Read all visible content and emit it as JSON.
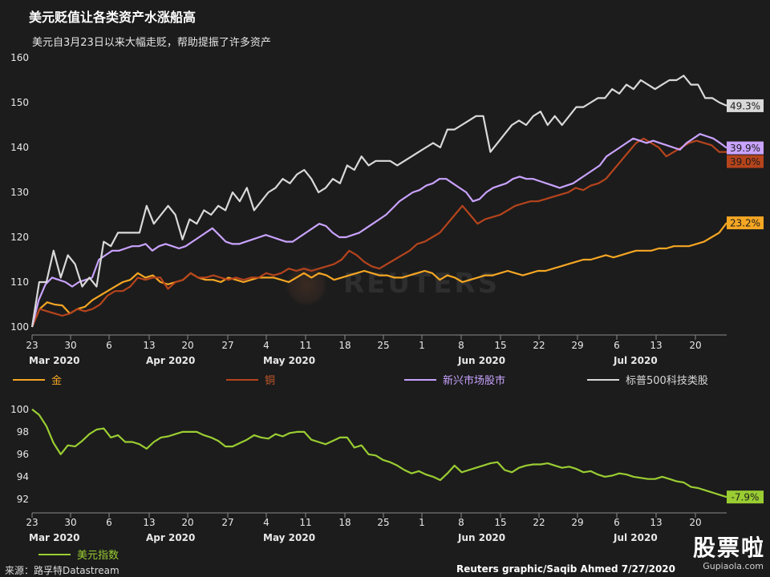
{
  "header": {
    "title": "美元贬值让各类资产水涨船高",
    "subtitle": "美元自3月23日以来大幅走贬，帮助提振了许多资产"
  },
  "watermark": "REUTERS",
  "footer": {
    "source": "来源：路孚特Datastream",
    "credit": "Reuters graphic/Saqib Ahmed 7/27/2020"
  },
  "site_badge": {
    "text": "股票啦",
    "url": "Gupiaola.com"
  },
  "chart_data": [
    {
      "type": "line",
      "title": "",
      "xlabel": "",
      "ylabel": "",
      "ylim": [
        100,
        160
      ],
      "yticks": [
        100,
        110,
        120,
        130,
        140,
        150,
        160
      ],
      "grid": false,
      "legend_position": "bottom",
      "x_tick_labels": [
        "23",
        "30",
        "6",
        "13",
        "20",
        "27",
        "4",
        "11",
        "18",
        "25",
        "1",
        "8",
        "15",
        "22",
        "29",
        "6",
        "13",
        "20"
      ],
      "x_month_labels": [
        {
          "label": "Mar 2020",
          "index": 0
        },
        {
          "label": "Apr 2020",
          "index": 3
        },
        {
          "label": "May 2020",
          "index": 6
        },
        {
          "label": "Jun 2020",
          "index": 11
        },
        {
          "label": "Jul 2020",
          "index": 15
        }
      ],
      "series": [
        {
          "name": "金",
          "color": "#f5a623",
          "end_label": "23.2%",
          "values": [
            100,
            104,
            105.5,
            105,
            104.8,
            103,
            104,
            104.5,
            106,
            107,
            108,
            109,
            110,
            110.5,
            112,
            111,
            111.5,
            110,
            109.5,
            110,
            110.5,
            112,
            111,
            110.5,
            110.5,
            110,
            111,
            110.5,
            110,
            110.5,
            111,
            111,
            111,
            110.5,
            110,
            111,
            112,
            111,
            112,
            111.5,
            110.5,
            111,
            111.5,
            112,
            112.5,
            112,
            111.5,
            111.5,
            111,
            111,
            111.5,
            112,
            112.5,
            112,
            110.5,
            111.5,
            111,
            110,
            110.5,
            111,
            111.5,
            111.5,
            112,
            112.5,
            112,
            111.5,
            112,
            112.5,
            112.5,
            113,
            113.5,
            114,
            114.5,
            115,
            115,
            115.5,
            116,
            115.5,
            116,
            116.5,
            117,
            117,
            117,
            117.5,
            117.5,
            118,
            118,
            118,
            118.5,
            119,
            120,
            121,
            123.2
          ]
        },
        {
          "name": "铜",
          "color": "#b5441c",
          "end_label": "39.0%",
          "values": [
            100,
            104,
            103.5,
            103,
            102.5,
            103,
            104,
            103.5,
            104,
            105,
            107,
            108,
            108,
            109,
            111,
            110.5,
            111,
            111,
            108.5,
            110,
            110.5,
            112,
            111,
            111,
            111.5,
            111,
            110.5,
            111,
            110.5,
            111,
            111,
            112,
            111.5,
            112,
            113,
            112.5,
            113,
            112.5,
            113,
            113.5,
            114,
            115,
            117,
            116,
            114.5,
            113.5,
            113,
            114,
            115,
            116,
            117,
            118.5,
            119,
            120,
            121,
            123,
            125,
            127,
            125,
            123,
            124,
            124.5,
            125,
            126,
            127,
            127.5,
            128,
            128,
            128.5,
            129,
            129.5,
            130,
            131,
            130.5,
            131.5,
            132,
            133,
            135,
            137,
            139,
            141,
            142,
            141,
            140,
            138,
            139,
            140,
            141,
            141.5,
            141,
            140.5,
            139,
            139
          ]
        },
        {
          "name": "新兴市场股市",
          "color": "#c9a3ff",
          "end_label": "39.9%",
          "values": [
            100,
            106,
            109.5,
            111,
            110.5,
            110,
            109,
            110,
            110.5,
            111,
            115,
            116,
            117,
            117,
            117.5,
            118,
            118,
            118.5,
            117,
            118,
            118.5,
            118,
            117.5,
            118,
            119,
            120,
            121,
            122,
            120.5,
            119,
            118.5,
            118.5,
            119,
            119.5,
            120,
            120.5,
            120,
            119.5,
            119,
            119,
            120,
            121,
            122,
            123,
            122.5,
            121,
            120,
            120,
            120.5,
            121,
            122,
            123,
            124,
            125,
            126.5,
            128,
            129,
            130,
            130.5,
            131.5,
            132,
            133,
            133,
            132,
            131,
            130,
            128,
            128.5,
            130,
            131,
            131.5,
            132,
            133,
            133.5,
            133,
            133,
            132.5,
            132,
            131.5,
            131,
            131.5,
            132,
            133,
            134,
            135,
            136,
            138,
            139,
            140,
            141,
            142,
            141.5,
            141,
            141.5,
            141,
            140.5,
            140,
            139.5,
            141,
            142,
            143,
            142.5,
            142,
            141,
            139.9
          ]
        },
        {
          "name": "标普500科技类股",
          "color": "#d9d9d9",
          "end_label": "49.3%",
          "values": [
            100,
            110,
            110,
            117,
            111,
            116,
            114,
            109,
            111,
            109,
            119,
            118,
            121,
            121,
            121,
            121,
            127,
            123,
            125,
            127,
            125,
            119.5,
            124,
            123,
            126,
            125,
            127,
            126,
            130,
            128,
            131,
            126,
            128,
            130,
            131,
            133,
            132,
            134,
            135,
            133,
            130,
            131,
            133,
            132,
            136,
            135,
            138,
            136,
            137,
            137,
            137,
            136,
            137,
            138,
            139,
            140,
            141,
            140,
            144,
            144,
            145,
            146,
            147,
            147,
            139,
            141,
            143,
            145,
            146,
            145,
            147,
            148,
            145,
            147,
            145,
            147,
            149,
            149,
            150,
            151,
            151,
            153,
            152,
            154,
            153,
            155,
            154,
            153,
            154,
            155,
            155,
            156,
            154,
            154,
            151,
            151,
            150,
            149.3
          ]
        }
      ]
    },
    {
      "type": "line",
      "title": "",
      "xlabel": "",
      "ylabel": "",
      "ylim": [
        91.5,
        100.2
      ],
      "yticks": [
        92,
        94,
        96,
        98,
        100
      ],
      "grid": false,
      "legend_position": "bottom-left",
      "x_tick_labels": [
        "23",
        "30",
        "6",
        "13",
        "20",
        "27",
        "4",
        "11",
        "18",
        "25",
        "1",
        "8",
        "15",
        "22",
        "29",
        "6",
        "13",
        "20"
      ],
      "x_month_labels": [
        {
          "label": "Mar 2020",
          "index": 0
        },
        {
          "label": "Apr 2020",
          "index": 3
        },
        {
          "label": "May 2020",
          "index": 6
        },
        {
          "label": "Jun 2020",
          "index": 11
        },
        {
          "label": "Jul 2020",
          "index": 15
        }
      ],
      "series": [
        {
          "name": "美元指数",
          "color": "#9acd32",
          "end_label": "-7.9%",
          "values": [
            100,
            99.5,
            98.5,
            97,
            96,
            96.8,
            96.7,
            97.2,
            97.8,
            98.2,
            98.3,
            97.5,
            97.7,
            97.1,
            97.1,
            96.9,
            96.5,
            97.1,
            97.5,
            97.6,
            97.8,
            98,
            98.0,
            98,
            97.7,
            97.5,
            97.2,
            96.7,
            96.7,
            97,
            97.3,
            97.7,
            97.5,
            97.4,
            97.8,
            97.6,
            97.9,
            98,
            98,
            97.3,
            97.1,
            96.9,
            97.2,
            97.5,
            97.5,
            96.6,
            96.8,
            96,
            95.9,
            95.5,
            95.3,
            95.0,
            94.6,
            94.3,
            94.5,
            94.2,
            94,
            93.7,
            94.3,
            95,
            94.4,
            94.6,
            94.8,
            95,
            95.2,
            95.3,
            94.6,
            94.4,
            94.8,
            95,
            95.1,
            95.1,
            95.2,
            95,
            94.8,
            94.9,
            94.7,
            94.4,
            94.5,
            94.2,
            94,
            94.1,
            94.3,
            94.2,
            94,
            93.9,
            93.8,
            93.8,
            94,
            93.8,
            93.6,
            93.5,
            93.1,
            93,
            92.8,
            92.6,
            92.4,
            92.2
          ]
        }
      ]
    }
  ]
}
